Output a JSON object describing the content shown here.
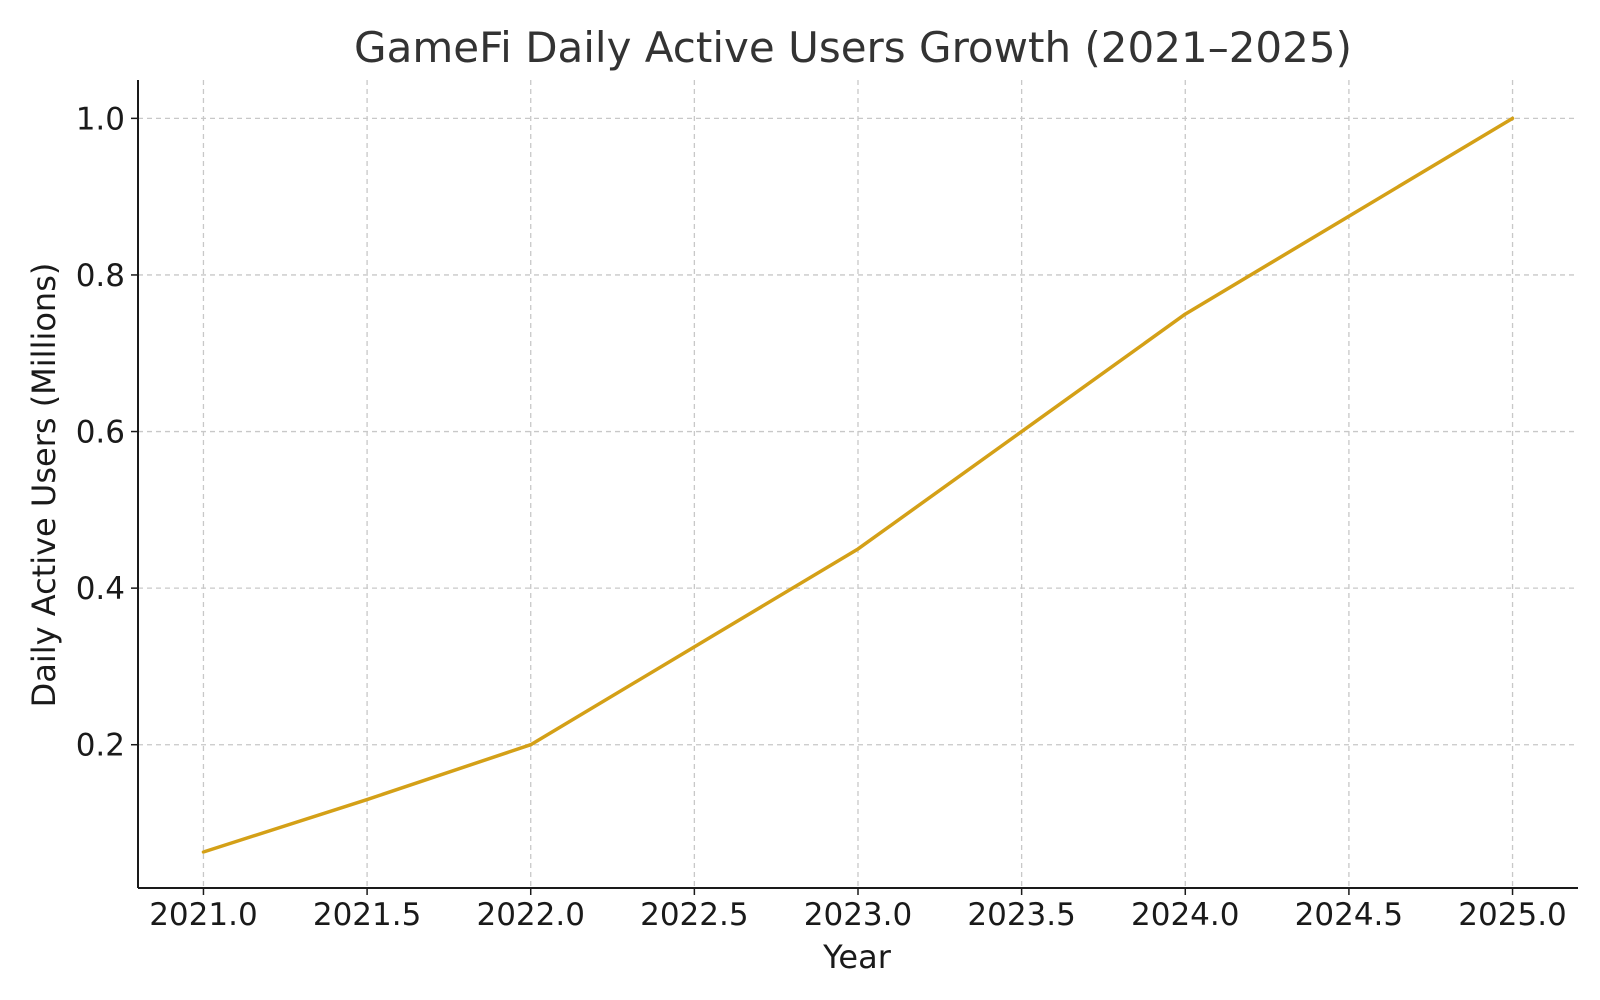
{
  "chart_data": {
    "type": "line",
    "title": "GameFi Daily Active Users Growth (2021–2025)",
    "xlabel": "Year",
    "ylabel": "Daily Active Users (Millions)",
    "xlim": [
      2020.8,
      2025.2
    ],
    "ylim": [
      0.017,
      1.049
    ],
    "x_ticks": [
      "2021.0",
      "2021.5",
      "2022.0",
      "2022.5",
      "2023.0",
      "2023.5",
      "2024.0",
      "2024.5",
      "2025.0"
    ],
    "y_ticks": [
      "0.2",
      "0.4",
      "0.6",
      "0.8",
      "1.0"
    ],
    "grid": true,
    "series": [
      {
        "color": "#D4A017",
        "x": [
          2021,
          2021.5,
          2022,
          2022.5,
          2023,
          2023.5,
          2024,
          2024.5,
          2025
        ],
        "y": [
          0.063,
          0.13,
          0.2,
          0.325,
          0.45,
          0.6,
          0.75,
          0.875,
          1.0
        ]
      }
    ]
  }
}
